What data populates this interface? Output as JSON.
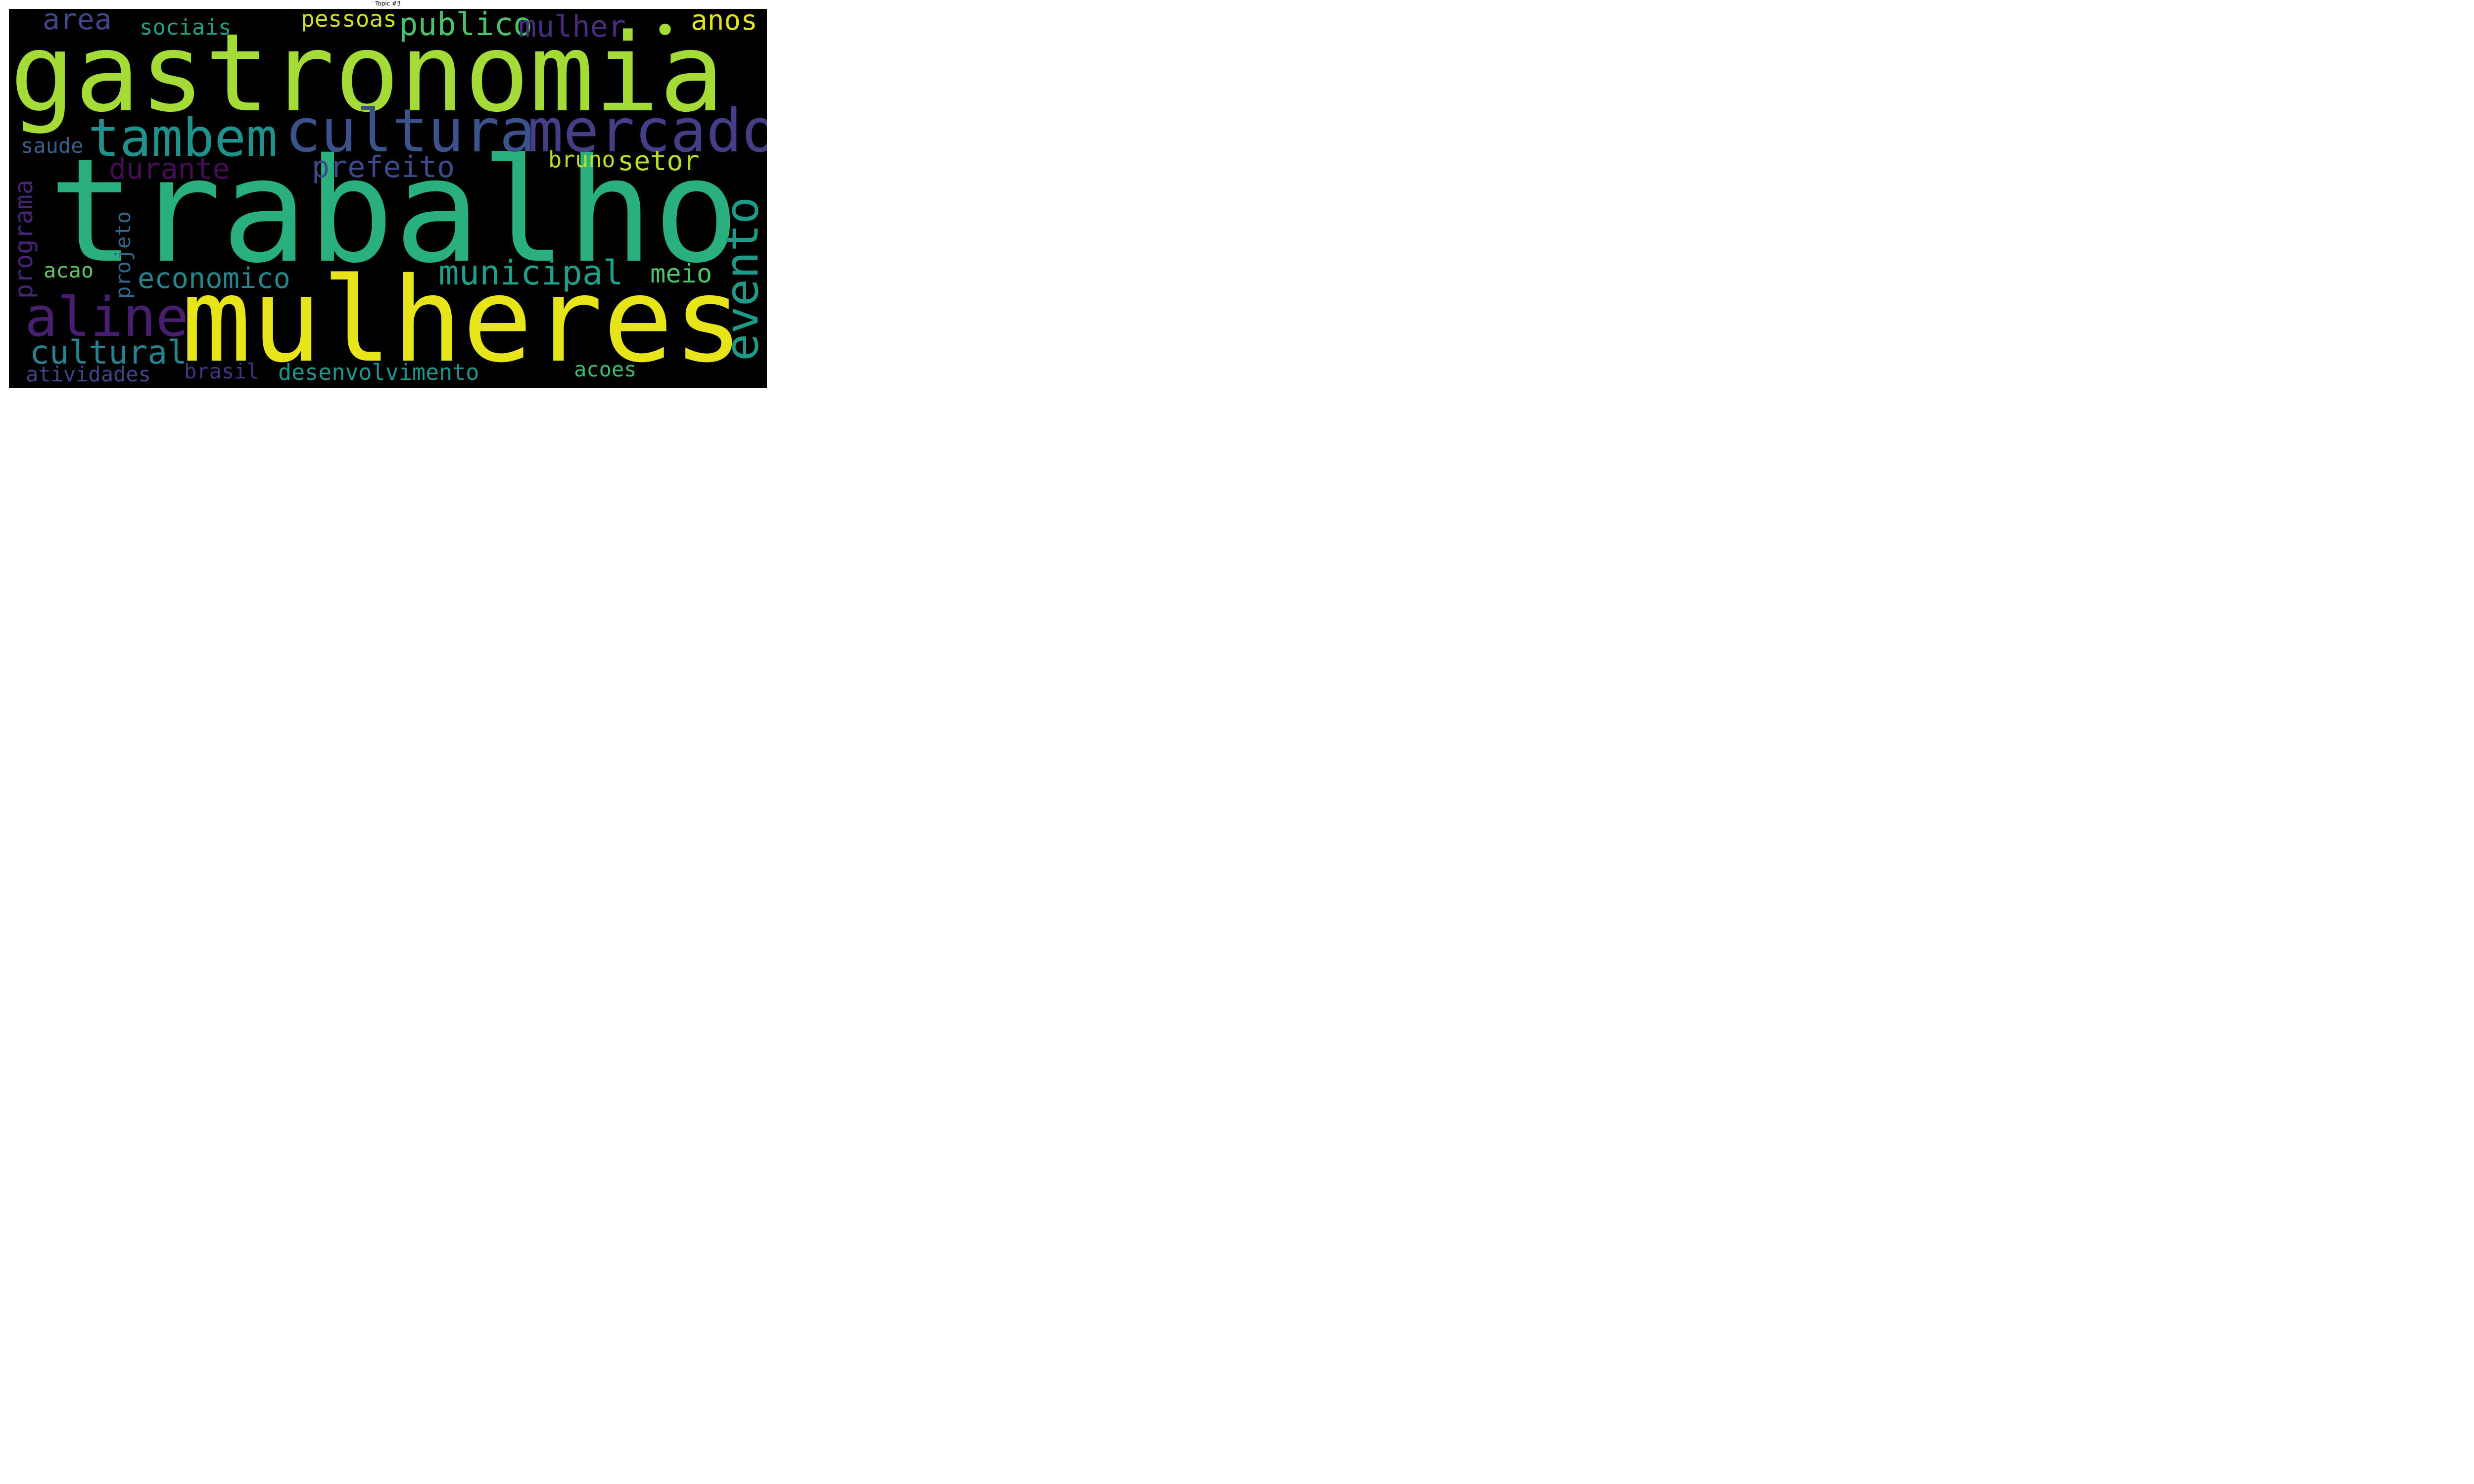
{
  "title": "Topic #3",
  "words": [
    {
      "text": "gastronomia",
      "color": "#a5db36",
      "orientation": "horizontal"
    },
    {
      "text": "trabalho",
      "color": "#2ab07f",
      "orientation": "horizontal"
    },
    {
      "text": "mulheres",
      "color": "#e7e419",
      "orientation": "horizontal"
    },
    {
      "text": "cultura",
      "color": "#3b528b",
      "orientation": "horizontal"
    },
    {
      "text": "mercado",
      "color": "#433e85",
      "orientation": "horizontal"
    },
    {
      "text": "tambem",
      "color": "#21918c",
      "orientation": "horizontal"
    },
    {
      "text": "aline",
      "color": "#481f70",
      "orientation": "horizontal"
    },
    {
      "text": "evento",
      "color": "#1f9a8a",
      "orientation": "vertical"
    },
    {
      "text": "municipal",
      "color": "#1f9e89",
      "orientation": "horizontal"
    },
    {
      "text": "cultural",
      "color": "#26828e",
      "orientation": "horizontal"
    },
    {
      "text": "prefeito",
      "color": "#3e4989",
      "orientation": "horizontal"
    },
    {
      "text": "economico",
      "color": "#25858e",
      "orientation": "horizontal"
    },
    {
      "text": "publico",
      "color": "#4ac16d",
      "orientation": "horizontal"
    },
    {
      "text": "mulher",
      "color": "#472d7b",
      "orientation": "horizontal"
    },
    {
      "text": "durante",
      "color": "#450d54",
      "orientation": "horizontal"
    },
    {
      "text": "programa",
      "color": "#482576",
      "orientation": "vertical"
    },
    {
      "text": "area",
      "color": "#3f4788",
      "orientation": "horizontal"
    },
    {
      "text": "anos",
      "color": "#e2e418",
      "orientation": "horizontal"
    },
    {
      "text": "setor",
      "color": "#b5de2b",
      "orientation": "horizontal"
    },
    {
      "text": "meio",
      "color": "#4ec36b",
      "orientation": "horizontal"
    },
    {
      "text": "desenvolvimento",
      "color": "#1f968b",
      "orientation": "horizontal"
    },
    {
      "text": "pessoas",
      "color": "#d0e11c",
      "orientation": "horizontal"
    },
    {
      "text": "bruno",
      "color": "#bddf26",
      "orientation": "horizontal"
    },
    {
      "text": "atividades",
      "color": "#414487",
      "orientation": "horizontal"
    },
    {
      "text": "acoes",
      "color": "#3dbc74",
      "orientation": "horizontal"
    },
    {
      "text": "sociais",
      "color": "#1fa187",
      "orientation": "horizontal"
    },
    {
      "text": "projeto",
      "color": "#31688e",
      "orientation": "vertical"
    },
    {
      "text": "acao",
      "color": "#5ec962",
      "orientation": "horizontal"
    },
    {
      "text": "brasil",
      "color": "#46327e",
      "orientation": "horizontal"
    },
    {
      "text": "saude",
      "color": "#355f8d",
      "orientation": "horizontal"
    },
    {
      "text": "•",
      "color": "#a5db36",
      "orientation": "horizontal"
    }
  ]
}
